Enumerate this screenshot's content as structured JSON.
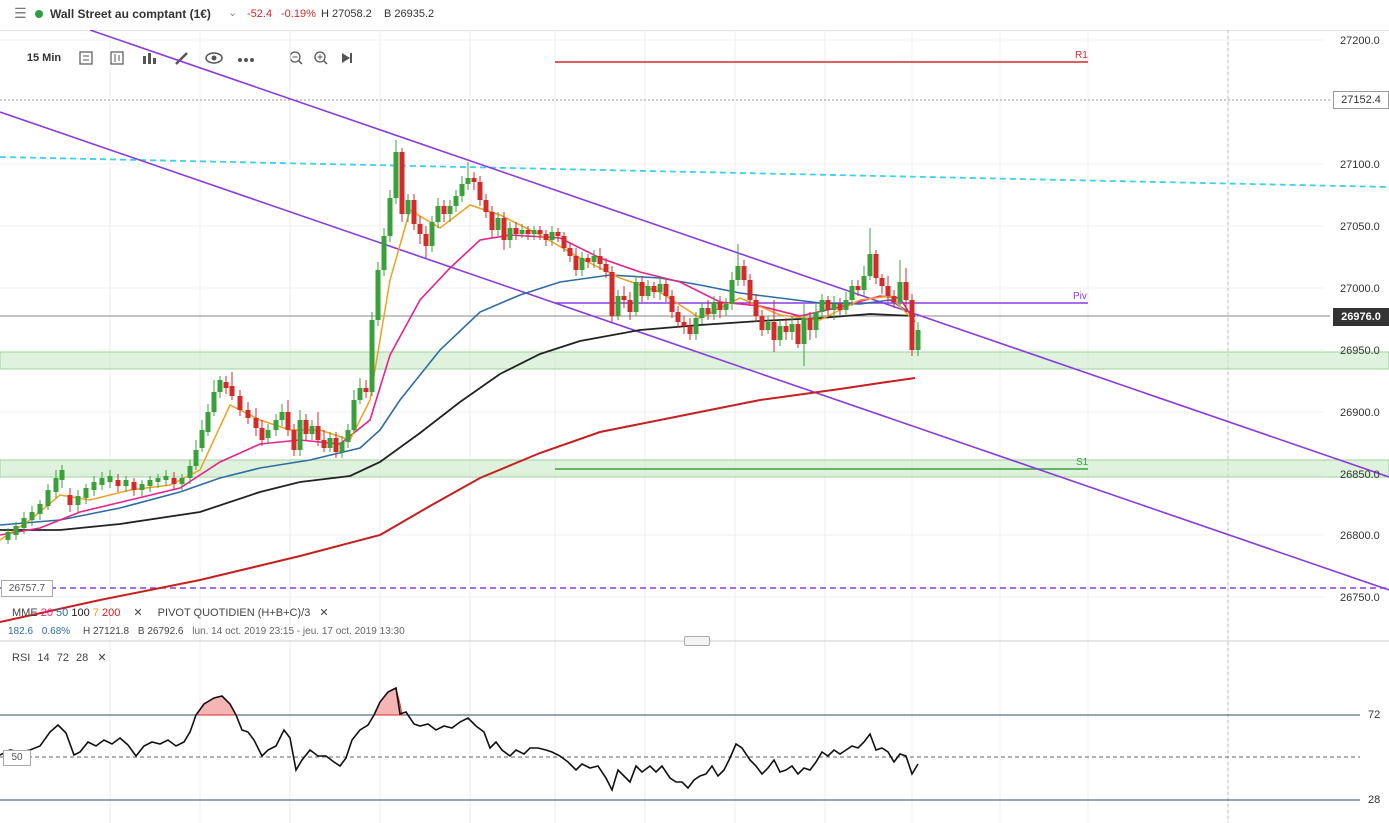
{
  "header": {
    "instrument": "Wall Street au comptant (1€)",
    "change": "-52.4",
    "change_pct": "-0.19%",
    "high": "H 27058.2",
    "low": "B 26935.2",
    "status_color": "#2e9e44"
  },
  "toolbar": {
    "timeframe": "15 Min",
    "icons": [
      "candle-type-icon",
      "bar-settings-icon",
      "indicator-icon",
      "draw-pencil-icon",
      "eye-icon",
      "more-icon",
      "zoom-out-icon",
      "zoom-in-icon",
      "play-forward-icon"
    ]
  },
  "price_axis": {
    "labels": [
      "27200.0",
      "27100.0",
      "27050.0",
      "27000.0",
      "26950.0",
      "26900.0",
      "26850.0",
      "26800.0",
      "26750.0"
    ],
    "marker_crosshair": "27152.4",
    "marker_current": "26976.0",
    "left_marker": "26757.7"
  },
  "levels": {
    "r1": "R1",
    "piv": "Piv",
    "s1": "S1"
  },
  "legend": {
    "line1": {
      "name": "MME",
      "p20": "20",
      "p50": "50",
      "p100": "100",
      "p7": "7",
      "p200": "200",
      "pivot": "PIVOT",
      "pivot_type": "QUOTIDIEN",
      "formula": "(H+B+C)/3",
      "close": "✕"
    },
    "line2": {
      "range": "182.6",
      "range_pct": "0.68%",
      "hi": "H 27121.8",
      "lo": "B 26792.6",
      "period": "lun. 14 oct. 2019 23:15 - jeu. 17 oct. 2019 13:30"
    }
  },
  "rsi": {
    "name": "RSI",
    "p1": "14",
    "p2": "72",
    "p3": "28",
    "close": "✕",
    "labels": [
      "72",
      "28"
    ],
    "mid_label": "50"
  },
  "colors": {
    "up": "#3aa03a",
    "down": "#d42a2a",
    "ema20": "#e8218c",
    "ema7": "#f0a020",
    "ema50": "#2e6da4",
    "ema100": "#222222",
    "ema200": "#c81e1e",
    "trend": "#8a3be0",
    "dashed": "#3cd2e8",
    "zone": "#c8eac8"
  }
}
